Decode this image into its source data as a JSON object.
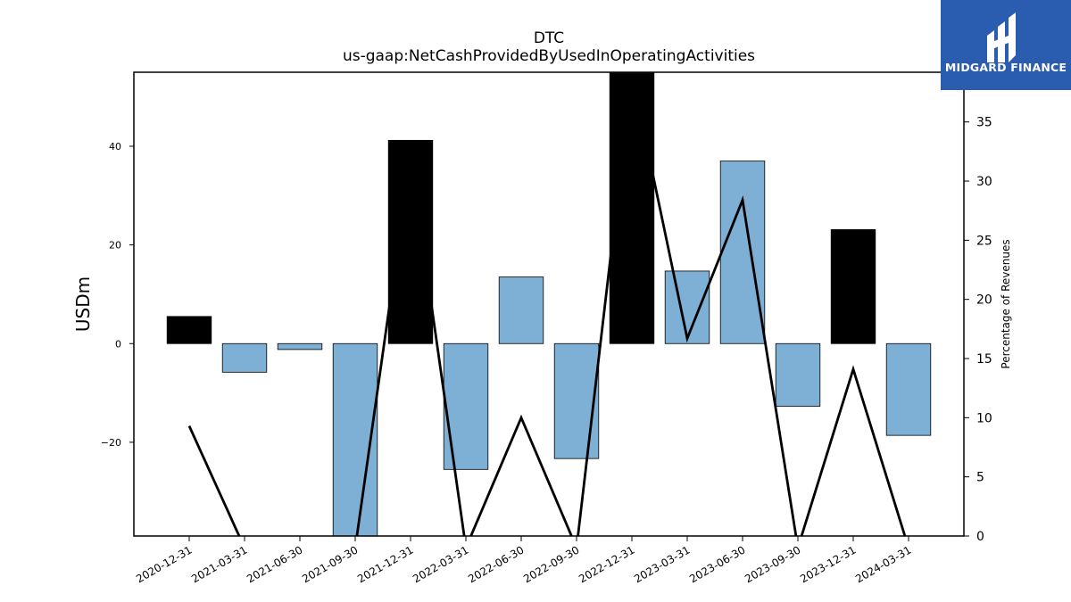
{
  "title": "DTC",
  "subtitle": "us-gaap:NetCashProvidedByUsedInOperatingActivities",
  "logo": {
    "text": "MIDGARD FINANCE",
    "bg_color": "#2a5db0"
  },
  "chart_data": {
    "type": "bar",
    "categories": [
      "2020-12-31",
      "2021-03-31",
      "2021-06-30",
      "2021-09-30",
      "2021-12-31",
      "2022-03-31",
      "2022-06-30",
      "2022-09-30",
      "2022-12-31",
      "2023-03-31",
      "2023-06-30",
      "2023-09-30",
      "2023-12-31",
      "2024-03-31"
    ],
    "series": [
      {
        "type": "bar",
        "axis": "left",
        "values": [
          5.5,
          -5.8,
          -1.2,
          -39.0,
          41.2,
          -25.5,
          13.5,
          -23.3,
          55.0,
          14.7,
          37.0,
          -12.7,
          23.1,
          -18.6
        ],
        "colors": [
          "#000000",
          "#7eb0d5",
          "#7eb0d5",
          "#7eb0d5",
          "#000000",
          "#7eb0d5",
          "#7eb0d5",
          "#7eb0d5",
          "#000000",
          "#7eb0d5",
          "#7eb0d5",
          "#7eb0d5",
          "#000000",
          "#7eb0d5"
        ]
      },
      {
        "type": "line",
        "axis": "right",
        "color": "#000000",
        "values": [
          9.3,
          -1.0,
          -1.0,
          -1.0,
          32.0,
          -1.0,
          10.0,
          -1.0,
          39.0,
          16.7,
          28.4,
          -1.0,
          14.1,
          -1.0
        ]
      }
    ],
    "ylabel": "USDm",
    "ylim": [
      -39,
      55
    ],
    "yticks": [
      -20,
      0,
      20,
      40
    ],
    "y2label": "Percentage of Revenues",
    "y2lim": [
      0,
      39.2
    ],
    "y2ticks": [
      0,
      5,
      10,
      15,
      20,
      25,
      30,
      35
    ],
    "grid": false,
    "legend": "none"
  }
}
